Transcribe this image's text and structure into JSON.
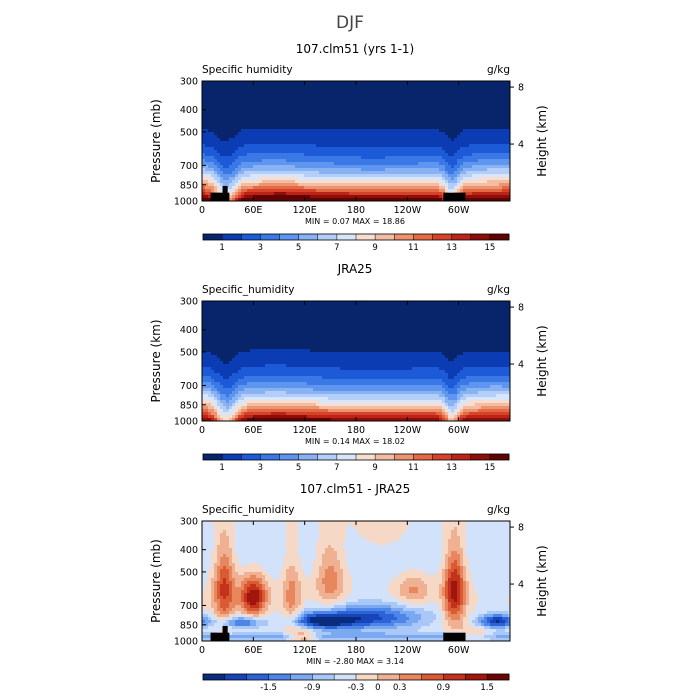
{
  "page": {
    "title": "DJF"
  },
  "colors": {
    "humidity_scale": [
      "#08246b",
      "#0b3cb4",
      "#1d5ad8",
      "#3a78e6",
      "#5e95ef",
      "#88b2f4",
      "#b3cef8",
      "#d8e6fb",
      "#f7ded0",
      "#f2bda2",
      "#ec9470",
      "#e46a45",
      "#d6432a",
      "#bb2417",
      "#8e0f0a",
      "#5e0504"
    ],
    "diff_scale": [
      "#0a2c7c",
      "#1744b8",
      "#2c63d6",
      "#4e86e8",
      "#7aa9f2",
      "#a9c8f7",
      "#d2e2fa",
      "#f6d8c6",
      "#f0b193",
      "#e8865d",
      "#da5a34",
      "#c2321c",
      "#a0150d",
      "#6b0605"
    ],
    "topography": "#000000"
  },
  "chart_data": [
    {
      "type": "heatmap",
      "title": "107.clm51 (yrs 1-1)",
      "left_label": "Specific humidity",
      "right_label": "g/kg",
      "ylabel": "Pressure (mb)",
      "ylabel_right": "Height (km)",
      "x_ticks": [
        "0",
        "60E",
        "120E",
        "180",
        "120W",
        "60W"
      ],
      "x_tick_values": [
        0,
        60,
        120,
        180,
        240,
        300
      ],
      "xlim": [
        0,
        360
      ],
      "y_ticks": [
        "300",
        "400",
        "500",
        "700",
        "850",
        "1000"
      ],
      "y_tick_values": [
        300,
        400,
        500,
        700,
        850,
        1000
      ],
      "ylim": [
        300,
        1000
      ],
      "height_ticks": [
        "8",
        "4"
      ],
      "height_tick_values": [
        8,
        4
      ],
      "stats": "MIN =     0.07   MAX =   18.86",
      "min": 0.07,
      "max": 18.86,
      "colorbar_labels": [
        "1",
        "3",
        "5",
        "7",
        "9",
        "11",
        "13",
        "15"
      ],
      "colorbar_levels": [
        0,
        1,
        2,
        3,
        4,
        5,
        6,
        7,
        8,
        9,
        10,
        11,
        12,
        13,
        14,
        15,
        16
      ],
      "topography": [
        {
          "lon_start": 10,
          "lon_end": 32,
          "pressure_top": 920
        },
        {
          "lon_start": 24,
          "lon_end": 30,
          "pressure_top": 860
        },
        {
          "lon_start": 282,
          "lon_end": 308,
          "pressure_top": 920
        }
      ],
      "field": "humidity",
      "moisture_scale": 1.0
    },
    {
      "type": "heatmap",
      "title": "JRA25",
      "left_label": "Specific_humidity",
      "right_label": "g/kg",
      "ylabel": "Pressure (km)",
      "ylabel_right": "Height (km)",
      "x_ticks": [
        "0",
        "60E",
        "120E",
        "180",
        "120W",
        "60W"
      ],
      "x_tick_values": [
        0,
        60,
        120,
        180,
        240,
        300
      ],
      "xlim": [
        0,
        360
      ],
      "y_ticks": [
        "300",
        "400",
        "500",
        "700",
        "850",
        "1000"
      ],
      "y_tick_values": [
        300,
        400,
        500,
        700,
        850,
        1000
      ],
      "ylim": [
        300,
        1000
      ],
      "height_ticks": [
        "8",
        "4"
      ],
      "height_tick_values": [
        8,
        4
      ],
      "stats": "MIN =     0.14   MAX =   18.02",
      "min": 0.14,
      "max": 18.02,
      "colorbar_labels": [
        "1",
        "3",
        "5",
        "7",
        "9",
        "11",
        "13",
        "15"
      ],
      "colorbar_levels": [
        0,
        1,
        2,
        3,
        4,
        5,
        6,
        7,
        8,
        9,
        10,
        11,
        12,
        13,
        14,
        15,
        16
      ],
      "topography": [],
      "field": "humidity",
      "moisture_scale": 0.93
    },
    {
      "type": "heatmap",
      "title": "107.clm51 - JRA25",
      "left_label": "Specific_humidity",
      "right_label": "g/kg",
      "ylabel": "Pressure (mb)",
      "ylabel_right": "Height (km)",
      "x_ticks": [
        "0",
        "60E",
        "120E",
        "180",
        "120W",
        "60W"
      ],
      "x_tick_values": [
        0,
        60,
        120,
        180,
        240,
        300
      ],
      "xlim": [
        0,
        360
      ],
      "y_ticks": [
        "300",
        "400",
        "500",
        "700",
        "850",
        "1000"
      ],
      "y_tick_values": [
        300,
        400,
        500,
        700,
        850,
        1000
      ],
      "ylim": [
        300,
        1000
      ],
      "height_ticks": [
        "8",
        "4"
      ],
      "height_tick_values": [
        8,
        4
      ],
      "stats": "MIN =   -2.80   MAX =    3.14",
      "min": -2.8,
      "max": 3.14,
      "colorbar_labels": [
        "-1.5",
        "-0.9",
        "-0.3",
        "0",
        "0.3",
        "0.9",
        "1.5"
      ],
      "colorbar_levels": [
        -2.1,
        -1.8,
        -1.5,
        -1.2,
        -0.9,
        -0.6,
        -0.3,
        0,
        0.3,
        0.6,
        0.9,
        1.2,
        1.5,
        1.8,
        2.1
      ],
      "topography": [
        {
          "lon_start": 10,
          "lon_end": 32,
          "pressure_top": 920
        },
        {
          "lon_start": 24,
          "lon_end": 30,
          "pressure_top": 860
        },
        {
          "lon_start": 282,
          "lon_end": 308,
          "pressure_top": 920
        }
      ],
      "field": "difference"
    }
  ]
}
